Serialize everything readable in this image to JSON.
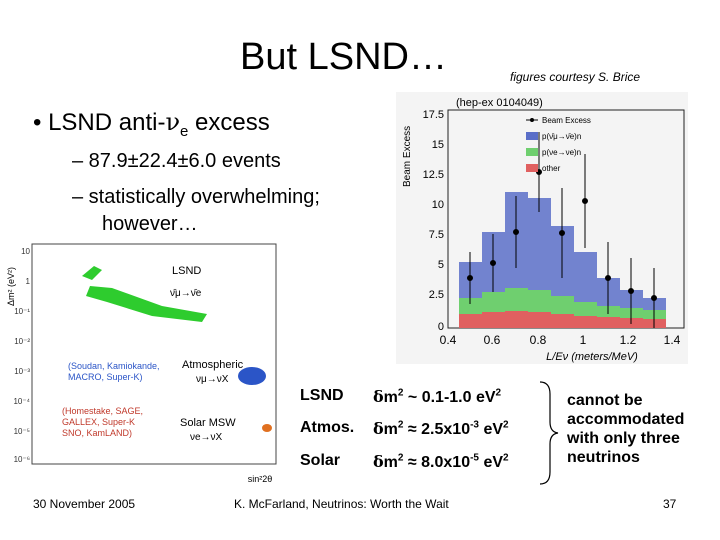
{
  "slide": {
    "title": "But LSND…",
    "credit": "figures courtesy S. Brice",
    "bullet1": {
      "prefix": "• LSND anti-",
      "nu": "ν",
      "sub": "e",
      "suffix": " excess"
    },
    "bullet2": "– 87.9±22.4±6.0 events",
    "bullet3_line1": "– statistically overwhelming;",
    "bullet3_line2": "however…"
  },
  "table": {
    "rows": [
      {
        "label": "LSND",
        "delta": "δ",
        "m": "m",
        "exp": "2",
        "rel": "~ 0.1-1.0 eV",
        "rel_exp": "2",
        "mant": "",
        "pow": ""
      },
      {
        "label": "Atmos.",
        "delta": "δ",
        "m": "m",
        "exp": "2",
        "rel": "≈ 2.5x10",
        "rel_exp": "-3",
        "tail": " eV",
        "tail_exp": "2"
      },
      {
        "label": "Solar",
        "delta": "δ",
        "m": "m",
        "exp": "2",
        "rel": "≈ 8.0x10",
        "rel_exp": "-5",
        "tail": " eV",
        "tail_exp": "2"
      }
    ],
    "conclusion": [
      "cannot be",
      "accommodated",
      "with only three",
      "neutrinos"
    ]
  },
  "excess_plot": {
    "ref": "(hep-ex 0104049)",
    "ylabel": "Beam Excess",
    "xlabel": "L/Eν (meters/MeV)",
    "y_ticks": [
      "17.5",
      "15",
      "12.5",
      "10",
      "7.5",
      "5",
      "2.5",
      "0"
    ],
    "x_ticks": [
      "0.4",
      "0.6",
      "0.8",
      "1",
      "1.2",
      "1.4"
    ],
    "legend": [
      "Beam Excess",
      "p(ν̄μ→ν̄e)n",
      "p(νe→νe)n",
      "other"
    ],
    "colors": {
      "oscillation": "#5a6ec8",
      "nue": "#6fcf6f",
      "other": "#e06060"
    }
  },
  "exclusion_plot": {
    "ylabel": "Δm² (eV²)",
    "xlabel": "sin²2θ",
    "y_ticks": [
      "10",
      "1",
      "10⁻¹",
      "10⁻²",
      "10⁻³",
      "10⁻⁴",
      "10⁻⁵",
      "10⁻⁶"
    ],
    "lsnd_label": "LSND",
    "lsnd_channel": "ν̄μ→ν̄e",
    "atm_label": "Atmospheric",
    "atm_channel": "νμ→νX",
    "atm_exps": [
      "(Soudan, Kamiokande,",
      "MACRO, Super-K)"
    ],
    "solar_label": "Solar MSW",
    "solar_channel": "νe→νX",
    "solar_exps": [
      "(Homestake, SAGE,",
      "GALLEX, Super-K",
      "SNO, KamLAND)"
    ],
    "colors": {
      "lsnd": "#2ecc2e",
      "atm": "#2b55c7",
      "solar": "#c0392b"
    }
  },
  "footer": {
    "date": "30 November 2005",
    "center": "K. McFarland, Neutrinos: Worth the Wait",
    "page": "37"
  }
}
